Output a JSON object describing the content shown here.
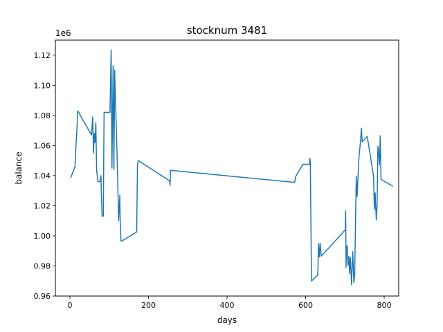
{
  "chart_data": {
    "type": "line",
    "title": "stocknum 3481",
    "xlabel": "days",
    "ylabel": "balance",
    "y_offset_label": "1e6",
    "xlim": [
      -37,
      837
    ],
    "ylim": [
      0.96,
      1.13
    ],
    "xticks": [
      0,
      200,
      400,
      600,
      800
    ],
    "yticks": [
      0.96,
      0.98,
      1.0,
      1.02,
      1.04,
      1.06,
      1.08,
      1.1,
      1.12
    ],
    "xtick_labels": [
      "0",
      "200",
      "400",
      "600",
      "800"
    ],
    "ytick_labels": [
      "0.96",
      "0.98",
      "1.00",
      "1.02",
      "1.04",
      "1.06",
      "1.08",
      "1.10",
      "1.12"
    ],
    "grid": false,
    "line_color": "#1f77b4",
    "series": [
      {
        "x": [
          2,
          13,
          15,
          18,
          20,
          55,
          58,
          60,
          62,
          64,
          66,
          68,
          71,
          76,
          79,
          80,
          82,
          85,
          87,
          90,
          102,
          105,
          107,
          110,
          112,
          114,
          116,
          120,
          124,
          127,
          128,
          130,
          132,
          170,
          172,
          174,
          254,
          255,
          256,
          572,
          575,
          593,
          610,
          611,
          612,
          615,
          631,
          633,
          635,
          637,
          640,
          701,
          702,
          703,
          704,
          706,
          708,
          710,
          712,
          714,
          717,
          720,
          723,
          725,
          727,
          729,
          731,
          736,
          738,
          740,
          742,
          744,
          757,
          773,
          775,
          777,
          780,
          782,
          784,
          786,
          788,
          790,
          792,
          795,
          822
        ],
        "y": [
          1.0385,
          1.046,
          1.058,
          1.071,
          1.083,
          1.067,
          1.079,
          1.055,
          1.068,
          1.062,
          1.075,
          1.044,
          1.036,
          1.036,
          1.04,
          1.028,
          1.013,
          1.013,
          1.082,
          1.082,
          1.082,
          1.1235,
          1.045,
          1.113,
          1.044,
          1.11,
          1.09,
          1.055,
          1.01,
          1.027,
          1.01,
          0.9965,
          0.9965,
          1.0025,
          1.047,
          1.05,
          1.0365,
          1.0335,
          1.0435,
          1.0355,
          1.0395,
          1.0475,
          1.0475,
          1.0515,
          1.049,
          0.97,
          0.974,
          0.995,
          0.986,
          0.995,
          0.9865,
          1.004,
          1.0165,
          0.979,
          0.992,
          0.9935,
          0.9805,
          0.9865,
          0.975,
          0.9855,
          0.9675,
          0.9895,
          0.969,
          0.974,
          1.008,
          1.0395,
          1.026,
          1.053,
          1.058,
          1.0635,
          1.0715,
          1.0625,
          1.066,
          1.0395,
          1.0175,
          1.0285,
          1.0105,
          1.0205,
          1.0595,
          1.055,
          1.047,
          1.0665,
          1.0375,
          1.037,
          1.033
        ]
      }
    ]
  }
}
